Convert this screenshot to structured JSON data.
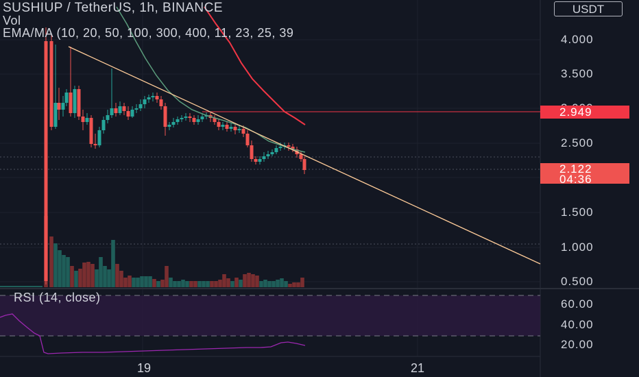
{
  "header": {
    "symbol_line": "SUSHIUP / TetherUS, 1h, BINANCE",
    "vol_label": "Vol",
    "ema_line": "EMA/MA (10, 20, 50, 100, 300, 400, 11, 23, 25, 39"
  },
  "currency_button": "USDT",
  "rsi_label": "RSI (14, close)",
  "price_axis": [
    "4.000",
    "3.500",
    "3.000",
    "2.500",
    "1.500",
    "1.000",
    "0.500"
  ],
  "rsi_axis": [
    "60.00",
    "40.00",
    "20.00"
  ],
  "time_axis": [
    "19",
    "21"
  ],
  "markers": {
    "horizontal_level": "2.949",
    "last_price": "2.122",
    "countdown": "04:36"
  },
  "colors": {
    "background": "#131722",
    "up": "#26a69a",
    "down": "#ef5350",
    "rsi_line": "#9c27b0",
    "rsi_band": "#2a1a3d",
    "trendline": "#ffcc99",
    "ma_red": "#f23645",
    "ma_green": "#5b9c7c"
  }
}
